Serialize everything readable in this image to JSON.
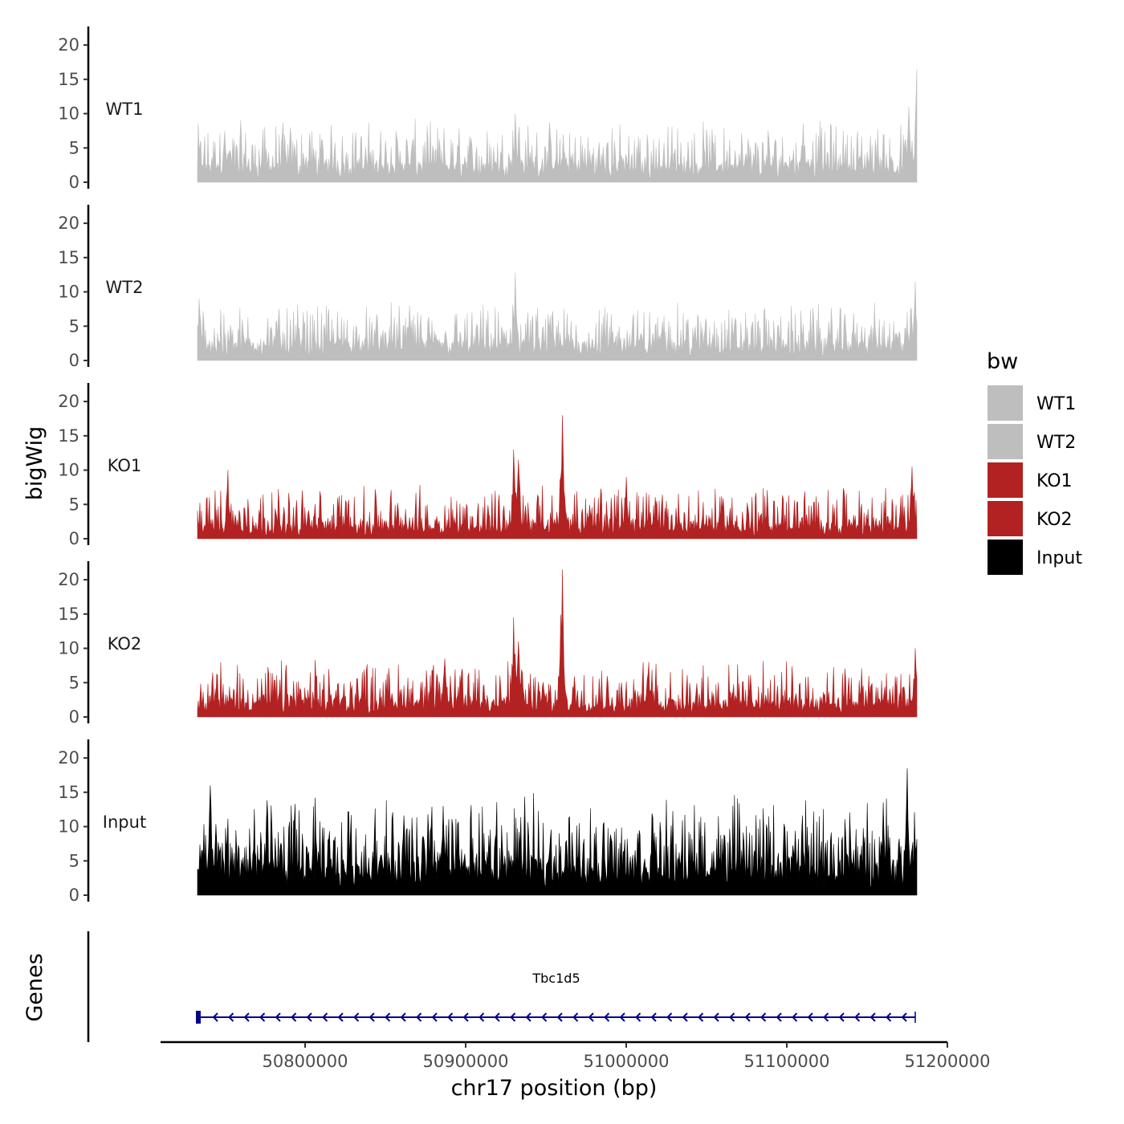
{
  "chart_data": {
    "type": "area",
    "title": "",
    "ylabel": "bigWig",
    "xlabel": "chr17 position (bp)",
    "genes_label": "Genes",
    "chromosome": "chr17",
    "xlim": [
      50710000,
      51200000
    ],
    "ylim": [
      0,
      22
    ],
    "y_ticks": [
      0,
      5,
      10,
      15,
      20
    ],
    "x_ticks": [
      50800000,
      50900000,
      51000000,
      51100000,
      51200000
    ],
    "x_tick_labels": [
      "50800000",
      "50900000",
      "51000000",
      "51100000",
      "51200000"
    ],
    "signal_range": [
      50733000,
      51181000
    ],
    "legend": {
      "title": "bw",
      "position": "right",
      "entries": [
        {
          "name": "WT1",
          "color": "#bebebe"
        },
        {
          "name": "WT2",
          "color": "#bebebe"
        },
        {
          "name": "KO1",
          "color": "#b22222"
        },
        {
          "name": "KO2",
          "color": "#b22222"
        },
        {
          "name": "Input",
          "color": "#000000"
        }
      ]
    },
    "series": [
      {
        "name": "WT1",
        "label": "WT1",
        "color": "#bebebe",
        "baseline": 2.5,
        "noise": 2.2,
        "max": 16.5,
        "peaks": [
          [
            50750000,
            7.5
          ],
          [
            50931000,
            10.0
          ],
          [
            51110000,
            8.5
          ],
          [
            51176000,
            11.0
          ],
          [
            51181000,
            16.5
          ]
        ]
      },
      {
        "name": "WT2",
        "label": "WT2",
        "color": "#bebebe",
        "baseline": 2.3,
        "noise": 2.0,
        "max": 12.8,
        "peaks": [
          [
            50734000,
            9.0
          ],
          [
            50931000,
            12.8
          ],
          [
            50865000,
            8.0
          ],
          [
            51180000,
            11.5
          ]
        ]
      },
      {
        "name": "KO1",
        "label": "KO1",
        "color": "#b22222",
        "baseline": 1.8,
        "noise": 2.0,
        "max": 18.0,
        "peaks": [
          [
            50752000,
            10.0
          ],
          [
            50930000,
            13.0
          ],
          [
            50933000,
            11.5
          ],
          [
            50960000,
            18.0
          ],
          [
            51000000,
            9.0
          ],
          [
            51178000,
            10.5
          ]
        ]
      },
      {
        "name": "KO2",
        "label": "KO2",
        "color": "#b22222",
        "baseline": 2.2,
        "noise": 2.0,
        "max": 21.5,
        "peaks": [
          [
            50887000,
            8.5
          ],
          [
            50930000,
            14.5
          ],
          [
            50933000,
            11.0
          ],
          [
            50960000,
            21.5
          ],
          [
            51014000,
            8.0
          ],
          [
            51180000,
            10.0
          ]
        ]
      },
      {
        "name": "Input",
        "label": "Input",
        "color": "#000000",
        "baseline": 4.5,
        "noise": 3.2,
        "max": 18.5,
        "peaks": [
          [
            50741000,
            16.0
          ],
          [
            50886000,
            13.0
          ],
          [
            51175000,
            18.5
          ],
          [
            51160000,
            13.5
          ]
        ]
      }
    ],
    "gene": {
      "name": "Tbc1d5",
      "start": 50733000,
      "end": 51180000,
      "strand": "-",
      "color": "#00008b"
    }
  }
}
